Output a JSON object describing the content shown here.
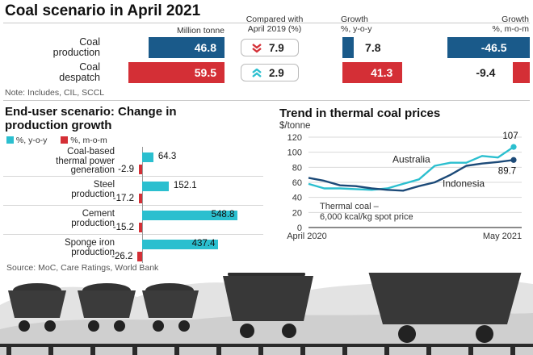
{
  "title": "Coal scenario in April 2021",
  "colors": {
    "blue": "#1a5a8a",
    "red": "#d42f36",
    "cyan": "#2bbfcf",
    "navy": "#1c4a78"
  },
  "table": {
    "headers": {
      "million_tonne": "Million tonne",
      "compared": [
        "Compared with",
        "April 2019 (%)"
      ],
      "growth_yoy": [
        "Growth",
        "%, y-o-y"
      ],
      "growth_mom": [
        "Growth",
        "%, m-o-m"
      ]
    },
    "rows": [
      {
        "label": [
          "Coal",
          "production"
        ],
        "value": 46.8,
        "value_text": "46.8",
        "compared": "7.9",
        "compared_dir": "down",
        "yoy": 7.8,
        "yoy_text": "7.8",
        "mom": -46.5,
        "mom_text": "-46.5"
      },
      {
        "label": [
          "Coal",
          "despatch"
        ],
        "value": 59.5,
        "value_text": "59.5",
        "compared": "2.9",
        "compared_dir": "up",
        "yoy": 41.3,
        "yoy_text": "41.3",
        "mom": -9.4,
        "mom_text": "-9.4"
      }
    ]
  },
  "note": "Note: Includes, CIL, SCCL",
  "end_user": {
    "title": [
      "End-user scenario: Change in",
      "production growth"
    ],
    "legend": [
      {
        "name": "%, y-o-y"
      },
      {
        "name": "%, m-o-m"
      }
    ]
  },
  "trend": {
    "title": "Trend in thermal coal prices",
    "unit": "$/tonne",
    "caption": [
      "Thermal coal –",
      "6,000 kcal/kg spot price"
    ],
    "australia_label": "Australia",
    "indonesia_label": "Indonesia",
    "end_australia": "107",
    "end_indonesia": "89.7"
  },
  "source": "Source: MoC, Care Ratings, World Bank",
  "chart_data": [
    {
      "type": "bar",
      "title": "End-user scenario: Change in production growth",
      "categories": [
        "Coal-based thermal power generation",
        "Steel production",
        "Cement production",
        "Sponge iron production"
      ],
      "category_lines": [
        [
          "Coal-based",
          "thermal power",
          "generation"
        ],
        [
          "Steel",
          "production"
        ],
        [
          "Cement",
          "production"
        ],
        [
          "Sponge iron",
          "production"
        ]
      ],
      "series": [
        {
          "name": "%, y-o-y",
          "values": [
            64.3,
            152.1,
            548.8,
            437.4
          ],
          "labels": [
            "64.3",
            "152.1",
            "548.8",
            "437.4"
          ]
        },
        {
          "name": "%, m-o-m",
          "values": [
            -2.9,
            -17.2,
            -15.2,
            -26.2
          ],
          "labels": [
            "-2.9",
            "-17.2",
            "-15.2",
            "-26.2"
          ]
        }
      ]
    },
    {
      "type": "line",
      "title": "Trend in thermal coal prices",
      "ylabel": "$/tonne",
      "ylim": [
        0,
        120
      ],
      "yticks": [
        0,
        20,
        40,
        60,
        80,
        100,
        120
      ],
      "x": [
        "2020-04",
        "2020-05",
        "2020-06",
        "2020-07",
        "2020-08",
        "2020-09",
        "2020-10",
        "2020-11",
        "2020-12",
        "2021-01",
        "2021-02",
        "2021-03",
        "2021-04",
        "2021-05"
      ],
      "xtick_labels": [
        "April 2020",
        "May 2021"
      ],
      "series": [
        {
          "name": "Australia",
          "values": [
            58,
            52,
            52,
            51,
            50,
            52,
            58,
            64,
            82,
            86,
            86,
            95,
            93,
            107
          ]
        },
        {
          "name": "Indonesia",
          "values": [
            66,
            62,
            56,
            55,
            52,
            50,
            49,
            55,
            60,
            70,
            82,
            85,
            87,
            89.7
          ]
        }
      ]
    }
  ]
}
